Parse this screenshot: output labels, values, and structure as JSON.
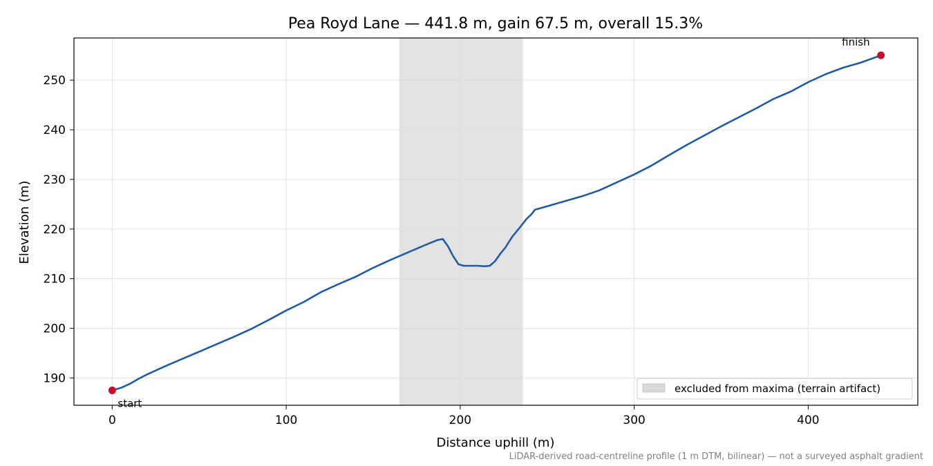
{
  "chart_data": {
    "type": "line",
    "title": "Pea Royd Lane — 441.8 m, gain 67.5 m, overall 15.3%",
    "xlabel": "Distance uphill (m)",
    "ylabel": "Elevation (m)",
    "xlim": [
      -22,
      463
    ],
    "ylim": [
      184.5,
      258.5
    ],
    "xticks": [
      0,
      100,
      200,
      300,
      400
    ],
    "yticks": [
      190,
      200,
      210,
      220,
      230,
      240,
      250
    ],
    "grid": true,
    "footnote": "LiDAR-derived road-centreline profile (1 m DTM, bilinear) — not a surveyed asphalt gradient",
    "excluded_region": {
      "x_start": 165,
      "x_end": 236,
      "label": "excluded from maxima (terrain artifact)"
    },
    "legend": {
      "placement": "lower-right",
      "entries": [
        "excluded from maxima (terrain artifact)"
      ]
    },
    "series": [
      {
        "color": "#1f5aa6",
        "x": [
          0,
          5,
          10,
          15,
          20,
          30,
          40,
          50,
          60,
          70,
          80,
          90,
          100,
          110,
          120,
          130,
          140,
          150,
          160,
          170,
          180,
          187,
          190,
          193,
          196,
          199,
          202,
          206,
          210,
          214,
          217,
          220,
          223,
          226,
          230,
          234,
          238,
          241,
          243,
          250,
          260,
          270,
          280,
          290,
          300,
          310,
          320,
          330,
          340,
          350,
          360,
          370,
          380,
          390,
          400,
          410,
          420,
          430,
          441.8
        ],
        "y": [
          187.5,
          188.0,
          188.8,
          189.8,
          190.7,
          192.3,
          193.8,
          195.3,
          196.8,
          198.3,
          199.9,
          201.7,
          203.6,
          205.3,
          207.3,
          208.9,
          210.4,
          212.2,
          213.8,
          215.3,
          216.8,
          217.8,
          218.0,
          216.5,
          214.5,
          212.9,
          212.6,
          212.6,
          212.6,
          212.5,
          212.6,
          213.5,
          215.0,
          216.3,
          218.5,
          220.2,
          222.0,
          223.0,
          223.9,
          224.6,
          225.6,
          226.6,
          227.8,
          229.4,
          231.0,
          232.8,
          234.9,
          236.9,
          238.8,
          240.7,
          242.5,
          244.3,
          246.2,
          247.7,
          249.6,
          251.2,
          252.5,
          253.5,
          255.0
        ]
      }
    ],
    "markers": [
      {
        "x": 0,
        "y": 187.5,
        "label": "start",
        "color": "#c8102e"
      },
      {
        "x": 441.8,
        "y": 255.0,
        "label": "finish",
        "color": "#c8102e"
      }
    ]
  }
}
